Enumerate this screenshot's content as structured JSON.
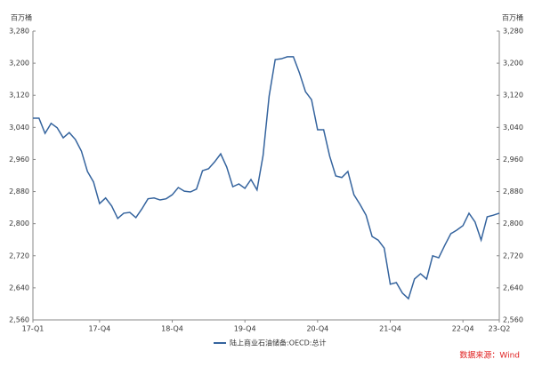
{
  "chart_data": {
    "type": "line",
    "y_unit": "百万桶",
    "y2_unit": "百万桶",
    "categories": [
      "17-Q1",
      null,
      null,
      null,
      null,
      null,
      null,
      null,
      null,
      null,
      null,
      "17-Q4",
      null,
      null,
      null,
      null,
      null,
      null,
      null,
      null,
      null,
      null,
      null,
      "18-Q4",
      null,
      null,
      null,
      null,
      null,
      null,
      null,
      null,
      null,
      null,
      null,
      "19-Q4",
      null,
      null,
      null,
      null,
      null,
      null,
      null,
      null,
      null,
      null,
      null,
      "20-Q4",
      null,
      null,
      null,
      null,
      null,
      null,
      null,
      null,
      null,
      null,
      null,
      "21-Q4",
      null,
      null,
      null,
      null,
      null,
      null,
      null,
      null,
      null,
      null,
      null,
      "22-Q4",
      null,
      null,
      null,
      null,
      null,
      "23-Q2"
    ],
    "series": [
      {
        "name": "陆上商业石油储备:OECD:总计",
        "color": "#35649e",
        "values": [
          3063,
          3063,
          3025,
          3050,
          3039,
          3014,
          3027,
          3010,
          2981,
          2930,
          2904,
          2850,
          2864,
          2844,
          2813,
          2826,
          2828,
          2815,
          2837,
          2862,
          2864,
          2859,
          2862,
          2872,
          2890,
          2881,
          2879,
          2886,
          2932,
          2937,
          2954,
          2974,
          2941,
          2892,
          2899,
          2888,
          2910,
          2884,
          2970,
          3118,
          3209,
          3211,
          3216,
          3216,
          3176,
          3129,
          3109,
          3034,
          3034,
          2968,
          2919,
          2915,
          2930,
          2872,
          2848,
          2821,
          2768,
          2759,
          2739,
          2649,
          2653,
          2627,
          2613,
          2662,
          2675,
          2662,
          2720,
          2715,
          2746,
          2775,
          2784,
          2795,
          2826,
          2804,
          2759,
          2817,
          2821,
          2826
        ]
      }
    ],
    "ylim": [
      2560,
      3280
    ],
    "yticks": [
      {
        "value": 2560,
        "label": "2,560"
      },
      {
        "value": 2640,
        "label": "2,640"
      },
      {
        "value": 2720,
        "label": "2,720"
      },
      {
        "value": 2800,
        "label": "2,800"
      },
      {
        "value": 2880,
        "label": "2,880"
      },
      {
        "value": 2960,
        "label": "2,960"
      },
      {
        "value": 3040,
        "label": "3,040"
      },
      {
        "value": 3120,
        "label": "3,120"
      },
      {
        "value": 3200,
        "label": "3,200"
      },
      {
        "value": 3280,
        "label": "3,280"
      }
    ],
    "y2lim": [
      2560,
      3280
    ],
    "y2ticks": [
      {
        "value": 2560,
        "label": "2,560"
      },
      {
        "value": 2640,
        "label": "2,640"
      },
      {
        "value": 2720,
        "label": "2,720"
      },
      {
        "value": 2800,
        "label": "2,800"
      },
      {
        "value": 2880,
        "label": "2,880"
      },
      {
        "value": 2960,
        "label": "2,960"
      },
      {
        "value": 3040,
        "label": "3,040"
      },
      {
        "value": 3120,
        "label": "3,120"
      },
      {
        "value": 3200,
        "label": "3,200"
      },
      {
        "value": 3280,
        "label": "3,280"
      }
    ],
    "grid": false,
    "legend": "bottom",
    "source": "数据来源：Wind"
  }
}
